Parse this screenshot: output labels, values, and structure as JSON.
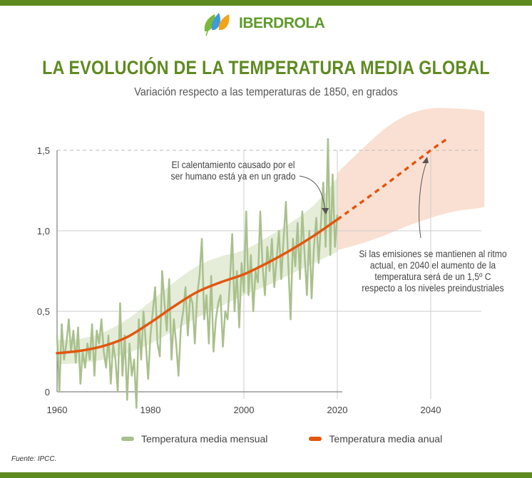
{
  "brand": {
    "name": "IBERDROLA",
    "green": "#5e8a20"
  },
  "title": "LA EVOLUCIÓN DE LA TEMPERATURA MEDIA GLOBAL",
  "subtitle": "Variación respecto a las temperaturas de 1850, en grados",
  "source": "Fuente: IPCC.",
  "chart_data": {
    "type": "line",
    "xlim": [
      1960,
      2052
    ],
    "ylim": [
      0,
      1.5
    ],
    "x_ticks": [
      {
        "v": 1960,
        "label": "1960"
      },
      {
        "v": 1980,
        "label": "1980"
      },
      {
        "v": 2000,
        "label": "2000"
      },
      {
        "v": 2020,
        "label": "2020"
      },
      {
        "v": 2040,
        "label": "2040"
      }
    ],
    "y_ticks": [
      {
        "v": 0,
        "label": "0"
      },
      {
        "v": 0.5,
        "label": "0,5"
      },
      {
        "v": 1.0,
        "label": "1,0"
      },
      {
        "v": 1.5,
        "label": "1,5"
      }
    ],
    "legend_position": "bottom",
    "series": [
      {
        "name": "Temperatura media mensual",
        "color": "#a9c08c",
        "x_start": 1960,
        "x_step": 0.5,
        "values": [
          0.35,
          0.0,
          0.42,
          0.2,
          0.3,
          0.45,
          0.25,
          0.38,
          0.18,
          0.4,
          0.05,
          0.25,
          0.15,
          0.3,
          0.2,
          0.42,
          0.1,
          0.38,
          0.3,
          0.45,
          0.25,
          0.15,
          0.35,
          0.05,
          0.3,
          0.2,
          0.0,
          0.55,
          0.1,
          0.35,
          -0.05,
          0.3,
          0.1,
          0.2,
          -0.1,
          0.45,
          0.2,
          0.5,
          0.3,
          0.08,
          0.35,
          0.5,
          0.65,
          0.3,
          0.22,
          0.75,
          0.55,
          0.38,
          0.7,
          0.2,
          0.45,
          0.3,
          0.1,
          0.4,
          0.5,
          0.65,
          0.35,
          0.6,
          0.55,
          0.3,
          0.6,
          0.72,
          0.95,
          0.45,
          0.6,
          0.3,
          0.72,
          0.25,
          0.45,
          0.55,
          0.6,
          0.28,
          0.5,
          0.45,
          0.68,
          0.98,
          0.5,
          0.75,
          0.4,
          0.8,
          0.62,
          1.12,
          0.6,
          0.85,
          0.5,
          0.75,
          0.68,
          1.12,
          0.78,
          0.6,
          0.9,
          0.75,
          0.95,
          0.65,
          0.82,
          1.0,
          0.7,
          0.95,
          1.18,
          0.8,
          0.45,
          0.95,
          0.78,
          1.05,
          0.7,
          1.12,
          0.85,
          0.6,
          1.0,
          0.58,
          0.9,
          1.08,
          0.8,
          1.05,
          1.3,
          0.9,
          1.57,
          0.85,
          1.35,
          0.9,
          1.1
        ]
      },
      {
        "name": "Temperatura media anual",
        "color": "#e3560f",
        "x": [
          1960,
          1965,
          1970,
          1975,
          1980,
          1985,
          1990,
          1995,
          2000,
          2005,
          2010,
          2015,
          2020
        ],
        "values": [
          0.24,
          0.255,
          0.285,
          0.34,
          0.43,
          0.53,
          0.62,
          0.68,
          0.73,
          0.8,
          0.88,
          0.97,
          1.07
        ]
      }
    ],
    "projection": {
      "color": "#e3560f",
      "x": [
        2020,
        2030,
        2040,
        2044
      ],
      "values": [
        1.07,
        1.28,
        1.5,
        1.58
      ]
    },
    "bands": [
      {
        "color": "#e5edd9",
        "x": [
          1960,
          1965,
          1970,
          1975,
          1980,
          1985,
          1990,
          1995,
          2000,
          2005,
          2010,
          2015,
          2020
        ],
        "lower": [
          0.17,
          0.18,
          0.2,
          0.24,
          0.3,
          0.38,
          0.46,
          0.53,
          0.6,
          0.66,
          0.73,
          0.8,
          0.87
        ],
        "upper": [
          0.32,
          0.33,
          0.37,
          0.45,
          0.56,
          0.68,
          0.78,
          0.84,
          0.88,
          0.96,
          1.05,
          1.16,
          1.33
        ]
      },
      {
        "color": "#fae0d2",
        "x": [
          2020,
          2025,
          2030,
          2035,
          2040,
          2045,
          2050,
          2051.5
        ],
        "lower": [
          0.88,
          0.92,
          0.97,
          1.03,
          1.08,
          1.12,
          1.14,
          1.15
        ],
        "upper": [
          1.36,
          1.5,
          1.63,
          1.72,
          1.76,
          1.76,
          1.75,
          1.74
        ]
      }
    ],
    "threshold_line": 1.5,
    "annotations": [
      {
        "text_lines": [
          "El calentamiento causado por el",
          "ser humano está ya en un grado"
        ]
      },
      {
        "text_lines": [
          "Si las emisiones se mantienen al ritmo",
          "actual, en 2040 el aumento de la",
          "temperatura será de un 1,5º C",
          "respecto a los niveles preindustriales"
        ]
      }
    ]
  }
}
